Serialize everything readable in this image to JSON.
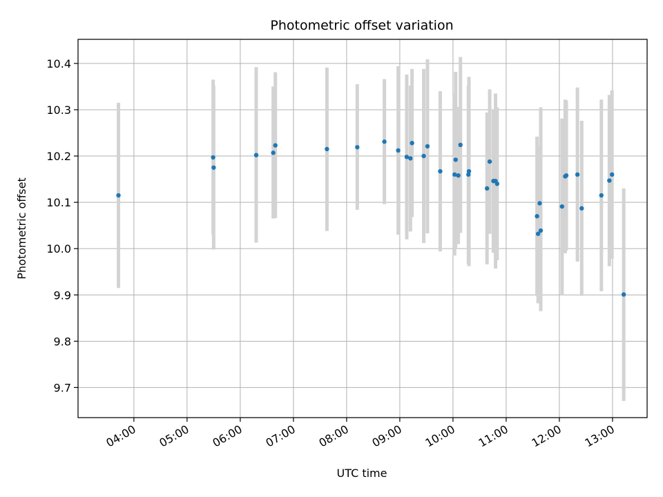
{
  "chart_data": {
    "type": "scatter",
    "title": "Photometric offset variation",
    "xlabel": "UTC time",
    "ylabel": "Photometric offset",
    "x_unit": "hours UTC",
    "xlim": [
      2.95,
      13.65
    ],
    "ylim": [
      9.635,
      10.452
    ],
    "grid": true,
    "colors": {
      "point": "#1f77b4",
      "errorbar": "#d3d3d3",
      "grid": "#b0b0b0"
    },
    "x_ticks": [
      {
        "value": 4,
        "label": "04:00"
      },
      {
        "value": 5,
        "label": "05:00"
      },
      {
        "value": 6,
        "label": "06:00"
      },
      {
        "value": 7,
        "label": "07:00"
      },
      {
        "value": 8,
        "label": "08:00"
      },
      {
        "value": 9,
        "label": "09:00"
      },
      {
        "value": 10,
        "label": "10:00"
      },
      {
        "value": 11,
        "label": "11:00"
      },
      {
        "value": 12,
        "label": "12:00"
      },
      {
        "value": 13,
        "label": "13:00"
      }
    ],
    "y_ticks": [
      {
        "value": 9.7,
        "label": "9.7"
      },
      {
        "value": 9.8,
        "label": "9.8"
      },
      {
        "value": 9.9,
        "label": "9.9"
      },
      {
        "value": 10.0,
        "label": "10.0"
      },
      {
        "value": 10.1,
        "label": "10.1"
      },
      {
        "value": 10.2,
        "label": "10.2"
      },
      {
        "value": 10.3,
        "label": "10.3"
      },
      {
        "value": 10.4,
        "label": "10.4"
      }
    ],
    "points": [
      {
        "x": 3.71,
        "y": 10.115,
        "ylo": 9.915,
        "yhi": 10.315
      },
      {
        "x": 5.49,
        "y": 10.197,
        "ylo": 10.03,
        "yhi": 10.365
      },
      {
        "x": 5.5,
        "y": 10.175,
        "ylo": 9.998,
        "yhi": 10.352
      },
      {
        "x": 6.3,
        "y": 10.202,
        "ylo": 10.013,
        "yhi": 10.392
      },
      {
        "x": 6.62,
        "y": 10.207,
        "ylo": 10.065,
        "yhi": 10.35
      },
      {
        "x": 6.66,
        "y": 10.223,
        "ylo": 10.066,
        "yhi": 10.381
      },
      {
        "x": 7.63,
        "y": 10.215,
        "ylo": 10.038,
        "yhi": 10.391
      },
      {
        "x": 8.2,
        "y": 10.219,
        "ylo": 10.084,
        "yhi": 10.355
      },
      {
        "x": 8.71,
        "y": 10.231,
        "ylo": 10.096,
        "yhi": 10.366
      },
      {
        "x": 8.97,
        "y": 10.212,
        "ylo": 10.03,
        "yhi": 10.394
      },
      {
        "x": 9.13,
        "y": 10.198,
        "ylo": 10.02,
        "yhi": 10.376
      },
      {
        "x": 9.2,
        "y": 10.195,
        "ylo": 10.037,
        "yhi": 10.352
      },
      {
        "x": 9.23,
        "y": 10.228,
        "ylo": 10.068,
        "yhi": 10.388
      },
      {
        "x": 9.45,
        "y": 10.2,
        "ylo": 10.012,
        "yhi": 10.388
      },
      {
        "x": 9.52,
        "y": 10.221,
        "ylo": 10.033,
        "yhi": 10.409
      },
      {
        "x": 9.76,
        "y": 10.167,
        "ylo": 9.994,
        "yhi": 10.34
      },
      {
        "x": 10.03,
        "y": 10.16,
        "ylo": 9.985,
        "yhi": 10.335
      },
      {
        "x": 10.05,
        "y": 10.192,
        "ylo": 10.002,
        "yhi": 10.382
      },
      {
        "x": 10.1,
        "y": 10.158,
        "ylo": 10.01,
        "yhi": 10.306
      },
      {
        "x": 10.14,
        "y": 10.224,
        "ylo": 10.034,
        "yhi": 10.414
      },
      {
        "x": 10.29,
        "y": 10.16,
        "ylo": 9.967,
        "yhi": 10.353
      },
      {
        "x": 10.3,
        "y": 10.167,
        "ylo": 9.962,
        "yhi": 10.371
      },
      {
        "x": 10.64,
        "y": 10.13,
        "ylo": 9.966,
        "yhi": 10.294
      },
      {
        "x": 10.69,
        "y": 10.188,
        "ylo": 10.032,
        "yhi": 10.344
      },
      {
        "x": 10.76,
        "y": 10.146,
        "ylo": 9.991,
        "yhi": 10.301
      },
      {
        "x": 10.8,
        "y": 10.146,
        "ylo": 9.957,
        "yhi": 10.335
      },
      {
        "x": 10.83,
        "y": 10.14,
        "ylo": 9.975,
        "yhi": 10.305
      },
      {
        "x": 11.58,
        "y": 10.07,
        "ylo": 9.898,
        "yhi": 10.242
      },
      {
        "x": 11.6,
        "y": 10.032,
        "ylo": 9.882,
        "yhi": 10.182
      },
      {
        "x": 11.63,
        "y": 10.098,
        "ylo": 9.975,
        "yhi": 10.221
      },
      {
        "x": 11.65,
        "y": 10.039,
        "ylo": 9.865,
        "yhi": 10.305
      },
      {
        "x": 12.05,
        "y": 10.091,
        "ylo": 9.9,
        "yhi": 10.281
      },
      {
        "x": 12.11,
        "y": 10.156,
        "ylo": 9.99,
        "yhi": 10.322
      },
      {
        "x": 12.13,
        "y": 10.158,
        "ylo": 9.996,
        "yhi": 10.32
      },
      {
        "x": 12.34,
        "y": 10.16,
        "ylo": 9.972,
        "yhi": 10.348
      },
      {
        "x": 12.42,
        "y": 10.087,
        "ylo": 9.898,
        "yhi": 10.276
      },
      {
        "x": 12.79,
        "y": 10.115,
        "ylo": 9.908,
        "yhi": 10.322
      },
      {
        "x": 12.94,
        "y": 10.147,
        "ylo": 9.962,
        "yhi": 10.332
      },
      {
        "x": 12.99,
        "y": 10.16,
        "ylo": 9.978,
        "yhi": 10.342
      },
      {
        "x": 13.21,
        "y": 9.901,
        "ylo": 9.671,
        "yhi": 10.13
      }
    ]
  }
}
